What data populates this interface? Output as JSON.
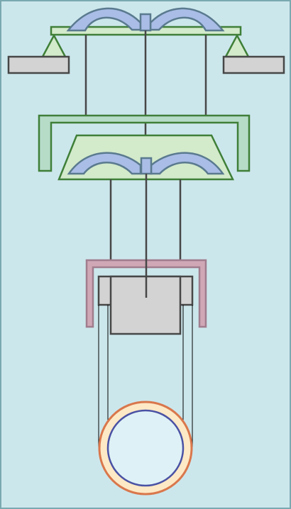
{
  "diagram": {
    "kind": "mechanical-schematic",
    "labels": [],
    "components": [
      "top-beam",
      "left-foot",
      "right-foot",
      "top-spring-arch",
      "upper-frame",
      "trapezoid-platform",
      "middle-spring-arch",
      "lower-bracket",
      "slider-block",
      "ring-bearing"
    ]
  },
  "colors": {
    "background": "#cce7ec",
    "background_border": "#7aa9b0",
    "green_fill": "#d3eacb",
    "green_stroke": "#3f7f38",
    "frame_fill": "#b6dcc8",
    "blue_fill": "#a9bde6",
    "blue_stroke": "#5a7a8f",
    "gray_fill": "#d3d3d3",
    "gray_stroke": "#474747",
    "mauve_fill": "#cfa7b5",
    "mauve_stroke": "#a07d8d",
    "rod": "#474747",
    "ring_outer_fill": "#fde9c6",
    "ring_outer_stroke": "#d9774c",
    "ring_inner_fill": "#def1f6",
    "ring_inner_stroke": "#4a52a4"
  }
}
